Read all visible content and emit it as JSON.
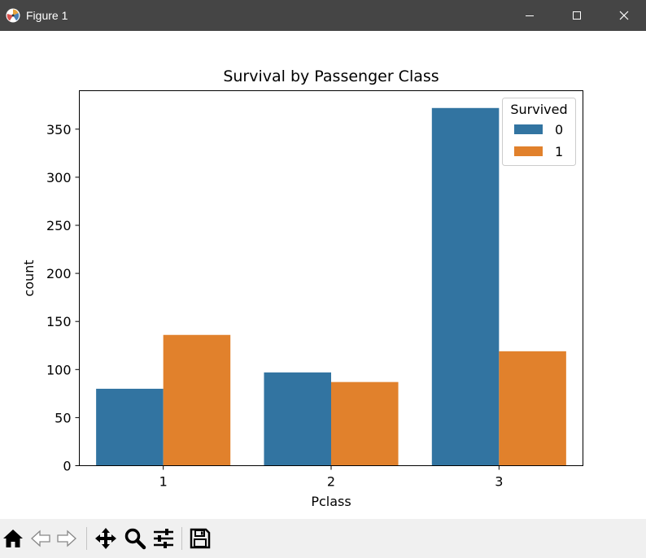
{
  "window": {
    "title": "Figure 1",
    "icon": "matplotlib-icon",
    "controls": [
      "minimize-icon",
      "maximize-icon",
      "close-icon"
    ]
  },
  "toolbar": {
    "icons": [
      "home-icon",
      "back-arrow-icon",
      "forward-arrow-icon",
      "pan-move-icon",
      "zoom-magnifier-icon",
      "configure-subplots-icon",
      "save-floppy-icon"
    ]
  },
  "chart_data": {
    "type": "bar",
    "title": "Survival by Passenger Class",
    "xlabel": "Pclass",
    "ylabel": "count",
    "categories": [
      "1",
      "2",
      "3"
    ],
    "series": [
      {
        "name": "0",
        "color": "#3274a1",
        "values": [
          80,
          97,
          372
        ]
      },
      {
        "name": "1",
        "color": "#e1812c",
        "values": [
          136,
          87,
          119
        ]
      }
    ],
    "ylim": [
      0,
      390
    ],
    "yticks": [
      0,
      50,
      100,
      150,
      200,
      250,
      300,
      350
    ],
    "legend": {
      "title": "Survived",
      "placement": "top-right"
    },
    "grid": false
  }
}
